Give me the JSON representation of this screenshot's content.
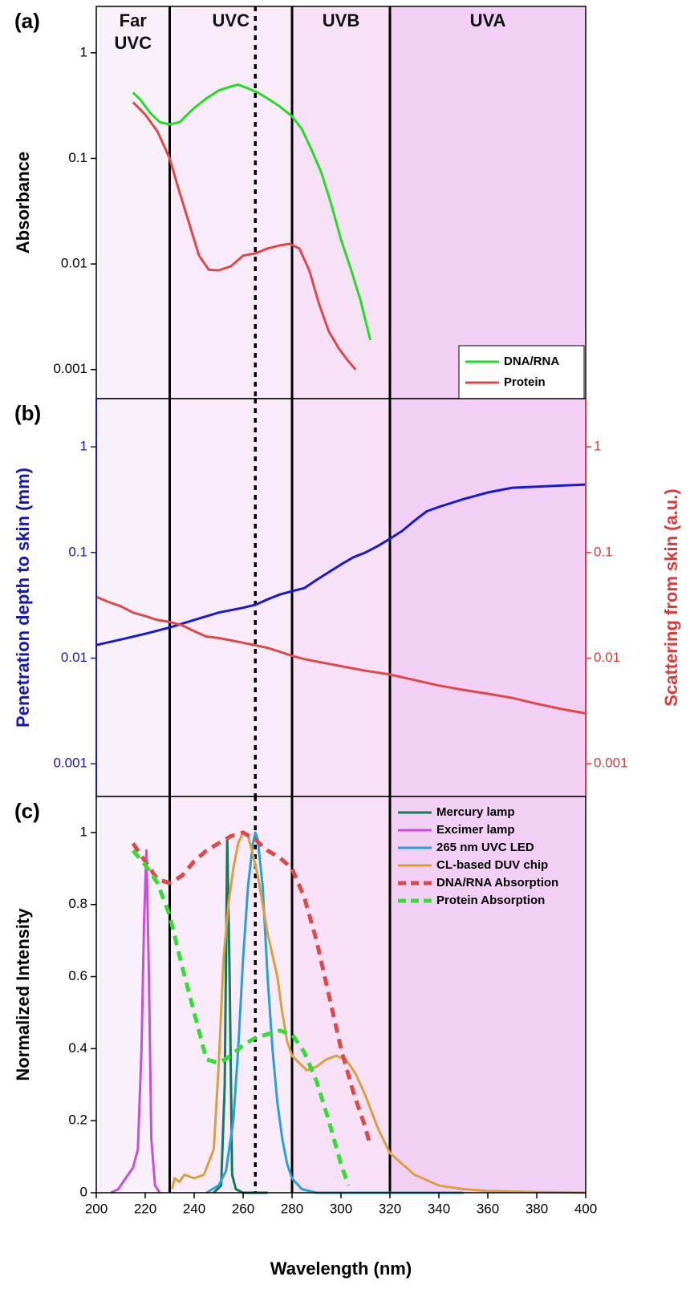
{
  "chart_data": [
    {
      "type": "line",
      "title": "(a)",
      "y_label": "Absorbance",
      "log_y": true,
      "xlim": [
        200,
        400
      ],
      "ylim": [
        0.00053,
        2.75
      ],
      "yticks": [
        1,
        0.1,
        0.01,
        0.001
      ],
      "regions": [
        {
          "label": "Far UVC",
          "start": 200,
          "end": 230,
          "color": "#f8f0fa"
        },
        {
          "label": "UVC",
          "start": 230,
          "end": 280,
          "color": "#f9ebf9"
        },
        {
          "label": "UVB",
          "start": 280,
          "end": 320,
          "color": "#f6e1f7"
        },
        {
          "label": "UVA",
          "start": 320,
          "end": 400,
          "color": "#f2d0f5"
        }
      ],
      "reference_line": 265,
      "legend": "lower right",
      "series": [
        {
          "name": "DNA/RNA",
          "color": "#22dd22",
          "x": [
            215,
            218,
            222,
            226,
            230,
            234,
            240,
            245,
            250,
            255,
            258,
            262,
            266,
            270,
            275,
            280,
            284,
            288,
            292,
            296,
            300,
            304,
            308,
            312
          ],
          "values": [
            0.42,
            0.36,
            0.27,
            0.22,
            0.21,
            0.22,
            0.3,
            0.37,
            0.44,
            0.48,
            0.5,
            0.46,
            0.42,
            0.37,
            0.31,
            0.25,
            0.19,
            0.12,
            0.073,
            0.037,
            0.017,
            0.009,
            0.0045,
            0.0019
          ]
        },
        {
          "name": "Protein",
          "color": "#e04848",
          "x": [
            215,
            220,
            225,
            230,
            234,
            238,
            242,
            246,
            250,
            255,
            260,
            265,
            270,
            275,
            279,
            283,
            287,
            291,
            295,
            299,
            303,
            306
          ],
          "values": [
            0.34,
            0.26,
            0.18,
            0.1,
            0.048,
            0.024,
            0.012,
            0.0088,
            0.0087,
            0.0095,
            0.012,
            0.0126,
            0.014,
            0.015,
            0.0155,
            0.014,
            0.0087,
            0.0042,
            0.0023,
            0.0016,
            0.0012,
            0.001
          ]
        }
      ]
    },
    {
      "type": "line",
      "title": "(b)",
      "y_label": "Penetration depth to skin (mm)",
      "y2_label": "Scattering from skin (a.u.)",
      "log_y": true,
      "xlim": [
        200,
        400
      ],
      "ylim": [
        0.00049,
        2.86
      ],
      "yticks": [
        1,
        0.1,
        0.01,
        0.001
      ],
      "y2lim": [
        0.00049,
        2.86
      ],
      "y2ticks": [
        1,
        0.1,
        0.01,
        0.001
      ],
      "y_color": "#1a1aaa",
      "y2_color": "#d93a3a",
      "series": [
        {
          "color": "#1a1acc",
          "x": [
            200,
            210,
            220,
            230,
            240,
            250,
            260,
            265,
            270,
            275,
            280,
            285,
            290,
            295,
            300,
            305,
            310,
            315,
            320,
            325,
            330,
            335,
            340,
            350,
            360,
            370,
            380,
            390,
            400
          ],
          "values": [
            0.0133,
            0.015,
            0.017,
            0.0195,
            0.023,
            0.027,
            0.03,
            0.032,
            0.036,
            0.04,
            0.043,
            0.046,
            0.055,
            0.065,
            0.077,
            0.09,
            0.1,
            0.115,
            0.135,
            0.16,
            0.2,
            0.245,
            0.27,
            0.32,
            0.37,
            0.41,
            0.42,
            0.43,
            0.44
          ]
        },
        {
          "color": "#e04848",
          "axis": "y2",
          "x": [
            200,
            205,
            210,
            215,
            220,
            225,
            230,
            235,
            240,
            245,
            250,
            260,
            270,
            275,
            280,
            285,
            290,
            300,
            310,
            320,
            330,
            340,
            350,
            360,
            370,
            380,
            390,
            400
          ],
          "values": [
            0.038,
            0.034,
            0.031,
            0.027,
            0.025,
            0.023,
            0.022,
            0.0205,
            0.018,
            0.016,
            0.0155,
            0.014,
            0.0125,
            0.0115,
            0.0105,
            0.0098,
            0.0093,
            0.0084,
            0.0076,
            0.007,
            0.0062,
            0.0055,
            0.005,
            0.0046,
            0.0042,
            0.0037,
            0.0033,
            0.003
          ]
        }
      ]
    },
    {
      "type": "line",
      "title": "(c)",
      "y_label": "Normalized Intensity",
      "x_label": "Wavelength (nm)",
      "xlim": [
        200,
        400
      ],
      "ylim": [
        0,
        1.1
      ],
      "yticks": [
        0,
        0.2,
        0.4,
        0.6,
        0.8,
        1
      ],
      "xticks": [
        200,
        220,
        240,
        260,
        280,
        300,
        320,
        340,
        360,
        380,
        400
      ],
      "legend": "upper right",
      "series": [
        {
          "name": "Mercury lamp",
          "color": "#127a5a",
          "x": [
            248,
            251,
            252.5,
            253.5,
            254.5,
            255.5,
            257,
            260,
            265,
            270
          ],
          "values": [
            0,
            0.02,
            0.3,
            0.98,
            0.6,
            0.05,
            0.01,
            0,
            0,
            0
          ]
        },
        {
          "name": "Excimer lamp",
          "color": "#c94fd8",
          "x": [
            206,
            209,
            212,
            215,
            217,
            218.5,
            219.5,
            220.5,
            221.5,
            222.5,
            224,
            226
          ],
          "values": [
            0,
            0.01,
            0.04,
            0.07,
            0.12,
            0.4,
            0.75,
            0.95,
            0.6,
            0.15,
            0.02,
            0
          ]
        },
        {
          "name": "265 nm UVC LED",
          "color": "#2a9fd8",
          "x": [
            245,
            250,
            253,
            256,
            258,
            260,
            262,
            264,
            265,
            266,
            268,
            270,
            272,
            274,
            276,
            278,
            280,
            284,
            290,
            300,
            320,
            350
          ],
          "values": [
            0,
            0.02,
            0.06,
            0.2,
            0.4,
            0.65,
            0.85,
            0.97,
            1.0,
            0.98,
            0.85,
            0.6,
            0.4,
            0.25,
            0.15,
            0.08,
            0.04,
            0.01,
            0,
            0,
            0,
            0
          ]
        },
        {
          "name": "CL-based DUV chip",
          "color": "#d9a040",
          "x": [
            231,
            232,
            234,
            236,
            240,
            244,
            248,
            250,
            252,
            254,
            256,
            258,
            260,
            262,
            264,
            266,
            268,
            270,
            272,
            274,
            276,
            278,
            280,
            283,
            286,
            290,
            294,
            298,
            302,
            306,
            310,
            315,
            320,
            330,
            340,
            350,
            360,
            380,
            400
          ],
          "values": [
            0.01,
            0.04,
            0.03,
            0.05,
            0.04,
            0.05,
            0.12,
            0.35,
            0.65,
            0.8,
            0.9,
            0.97,
            1.0,
            0.99,
            0.94,
            0.88,
            0.8,
            0.72,
            0.66,
            0.6,
            0.5,
            0.42,
            0.38,
            0.36,
            0.34,
            0.35,
            0.37,
            0.38,
            0.37,
            0.33,
            0.27,
            0.18,
            0.11,
            0.05,
            0.02,
            0.01,
            0.005,
            0.002,
            0
          ]
        },
        {
          "name": "DNA/RNA Absorption",
          "color": "#e04848",
          "dashed": true,
          "x": [
            215,
            220,
            225,
            230,
            235,
            240,
            245,
            250,
            255,
            260,
            265,
            270,
            275,
            280,
            285,
            290,
            295,
            300,
            305,
            310,
            312
          ],
          "values": [
            0.97,
            0.92,
            0.87,
            0.86,
            0.88,
            0.92,
            0.95,
            0.97,
            0.99,
            1.0,
            0.98,
            0.95,
            0.93,
            0.9,
            0.82,
            0.7,
            0.55,
            0.4,
            0.28,
            0.18,
            0.13
          ]
        },
        {
          "name": "Protein Absorption",
          "color": "#33dd33",
          "dashed": true,
          "x": [
            215,
            220,
            225,
            230,
            235,
            240,
            245,
            250,
            255,
            260,
            265,
            270,
            275,
            280,
            285,
            290,
            295,
            300,
            303
          ],
          "values": [
            0.95,
            0.91,
            0.86,
            0.77,
            0.63,
            0.5,
            0.37,
            0.36,
            0.38,
            0.41,
            0.43,
            0.44,
            0.45,
            0.44,
            0.39,
            0.31,
            0.2,
            0.08,
            0.02
          ]
        }
      ]
    }
  ]
}
